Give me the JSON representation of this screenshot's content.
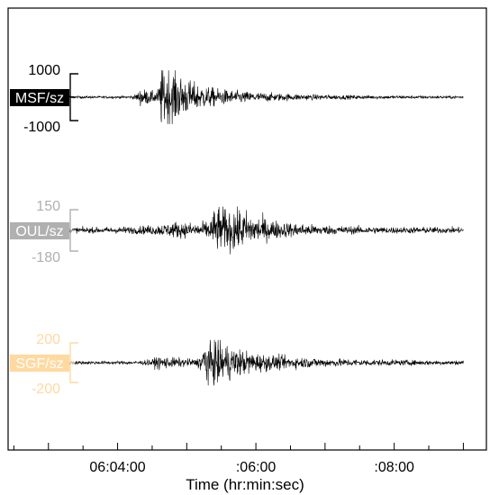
{
  "chart_data": {
    "type": "line",
    "title": "",
    "xlabel": "Time (hr:min:sec)",
    "ylabel": "",
    "x_range": [
      "06:02:25",
      "06:09:20"
    ],
    "x_ticks": [
      {
        "time": "06:04:00",
        "label": "06:04:00"
      },
      {
        "time": "06:06:00",
        "label": ":06:00"
      },
      {
        "time": "06:08:00",
        "label": ":08:00"
      }
    ],
    "grid": false,
    "legend": "none",
    "series": [
      {
        "name": "MSF/sz",
        "label_bg": "#000000",
        "label_fg": "#ffffff",
        "tick_color": "#000000",
        "y_ticks": [
          1000,
          -1000
        ],
        "ylim": [
          -1000,
          1000
        ],
        "start": "06:03:05",
        "end": "06:09:00",
        "noise": 35,
        "events": [
          {
            "t": "06:04:20",
            "amp": 240,
            "rise": 3,
            "decay": 20
          },
          {
            "t": "06:04:38",
            "amp": 820,
            "rise": 1.5,
            "decay": 14
          },
          {
            "t": "06:04:45",
            "amp": 380,
            "rise": 2,
            "decay": 60
          }
        ]
      },
      {
        "name": "OUL/sz",
        "label_bg": "#b0b0b0",
        "label_fg": "#ffffff",
        "tick_color": "#b0b0b0",
        "y_ticks": [
          150,
          -180
        ],
        "ylim": [
          -180,
          150
        ],
        "start": "06:03:05",
        "end": "06:09:00",
        "noise": 16,
        "events": [
          {
            "t": "06:04:50",
            "amp": 30,
            "rise": 20,
            "decay": 60
          },
          {
            "t": "06:05:25",
            "amp": 100,
            "rise": 4,
            "decay": 22
          },
          {
            "t": "06:05:40",
            "amp": 55,
            "rise": 5,
            "decay": 35
          }
        ]
      },
      {
        "name": "SGF/sz",
        "label_bg": "#ffd9a0",
        "label_fg": "#ffffff",
        "tick_color": "#ffd9a0",
        "y_ticks": [
          200,
          -200
        ],
        "ylim": [
          -200,
          200
        ],
        "start": "06:03:05",
        "end": "06:09:00",
        "noise": 12,
        "events": [
          {
            "t": "06:04:35",
            "amp": 35,
            "rise": 6,
            "decay": 35
          },
          {
            "t": "06:05:15",
            "amp": 150,
            "rise": 2,
            "decay": 18
          },
          {
            "t": "06:05:25",
            "amp": 70,
            "rise": 4,
            "decay": 70
          }
        ]
      }
    ]
  }
}
